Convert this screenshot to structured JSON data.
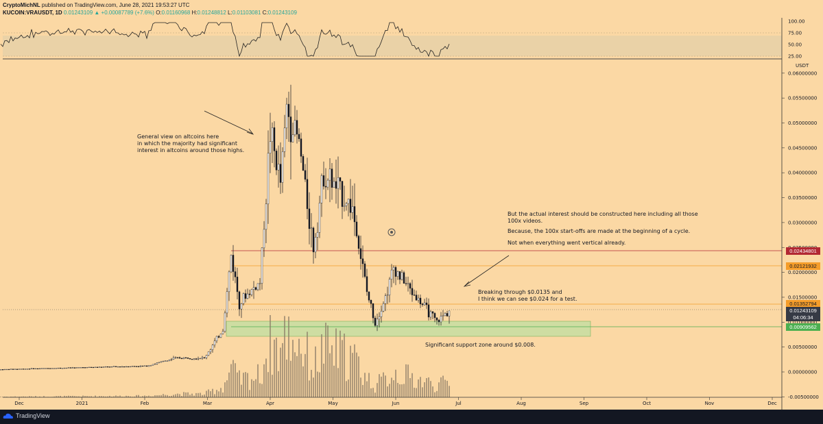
{
  "header": {
    "author": "CryptoMichNL",
    "published": "published on TradingView.com, June 28, 2021 19:53:27 UTC",
    "symbol": "KUCOIN:VRAUSDT, 1D",
    "last": "0.01243109",
    "change": "▲ +0.00087789 (+7.6%)",
    "o_label": "O:",
    "o": "0.01160968",
    "h_label": "H:",
    "h": "0.01248812",
    "l_label": "L:",
    "l": "0.01103081",
    "c_label": "C:",
    "c": "0.01243109"
  },
  "annotations": {
    "general_view": "General view on altcoins here\nin which the majority had significant\ninterest in altcoins around those highs.",
    "actual_interest": "But the actual interest should be constructed here including all those\n100x videos.",
    "start_offs": "Because, the 100x start-offs are made at the beginning of a cycle.",
    "not_vertical": "Not when everything went vertical already.",
    "breaking": "Breaking through $0.0135 and\nI think we can see $0.024 for a test.",
    "support": "Significant support zone around $0.008."
  },
  "badges": {
    "red": "0.02434801",
    "orange": "0.02121932",
    "orange2": "0.01352794",
    "price": "0.01243109",
    "countdown": "04:06:34",
    "green": "0.00909562"
  },
  "footer": {
    "brand": "TradingView"
  },
  "colors": {
    "background": "#fbd8a4",
    "up": "#26a69a",
    "red_level": "#b22833",
    "orange_level": "#f59d2a",
    "green_level": "#4caf50",
    "support_zone": "#c5e0a0"
  },
  "chart_data": {
    "type": "candlestick",
    "symbol": "VRAUSDT",
    "exchange": "KUCOIN",
    "timeframe": "1D",
    "currency": "USDT",
    "price_axis": {
      "ticks": [
        "0.06000000",
        "0.05500000",
        "0.05000000",
        "0.04500000",
        "0.04000000",
        "0.03500000",
        "0.03000000",
        "0.02500000",
        "0.02000000",
        "0.01500000",
        "0.01000000",
        "0.00500000",
        "0.00000000",
        "-0.00500000"
      ]
    },
    "rsi_axis": {
      "ticks": [
        "100.00",
        "75.00",
        "50.00",
        "25.00"
      ]
    },
    "time_axis": {
      "ticks": [
        "Dec",
        "2021",
        "Feb",
        "Mar",
        "Apr",
        "May",
        "Jun",
        "Jul",
        "Aug",
        "Sep",
        "Oct",
        "Nov",
        "Dec"
      ]
    },
    "horizontal_levels": [
      {
        "price": 0.02434801,
        "color": "red"
      },
      {
        "price": 0.02121932,
        "color": "orange"
      },
      {
        "price": 0.01352794,
        "color": "orange"
      },
      {
        "price": 0.00909562,
        "color": "green"
      }
    ],
    "support_zone": [
      0.0072,
      0.0101
    ],
    "price_path": [
      {
        "date": "2020-11-22",
        "close": 0.0005
      },
      {
        "date": "2021-01-01",
        "close": 0.0009
      },
      {
        "date": "2021-02-01",
        "close": 0.0012
      },
      {
        "date": "2021-02-15",
        "close": 0.0028
      },
      {
        "date": "2021-03-01",
        "close": 0.0028
      },
      {
        "date": "2021-03-10",
        "close": 0.0085
      },
      {
        "date": "2021-03-14",
        "close": 0.0235
      },
      {
        "date": "2021-03-18",
        "close": 0.014
      },
      {
        "date": "2021-03-28",
        "close": 0.018
      },
      {
        "date": "2021-04-02",
        "close": 0.048
      },
      {
        "date": "2021-04-07",
        "close": 0.038
      },
      {
        "date": "2021-04-10",
        "close": 0.053
      },
      {
        "date": "2021-04-16",
        "close": 0.046
      },
      {
        "date": "2021-04-23",
        "close": 0.025
      },
      {
        "date": "2021-04-28",
        "close": 0.04
      },
      {
        "date": "2021-05-12",
        "close": 0.033
      },
      {
        "date": "2021-05-19",
        "close": 0.016
      },
      {
        "date": "2021-05-23",
        "close": 0.01
      },
      {
        "date": "2021-05-28",
        "close": 0.015
      },
      {
        "date": "2021-06-01",
        "close": 0.021
      },
      {
        "date": "2021-06-10",
        "close": 0.016
      },
      {
        "date": "2021-06-22",
        "close": 0.01
      },
      {
        "date": "2021-06-28",
        "close": 0.01243109
      }
    ]
  }
}
